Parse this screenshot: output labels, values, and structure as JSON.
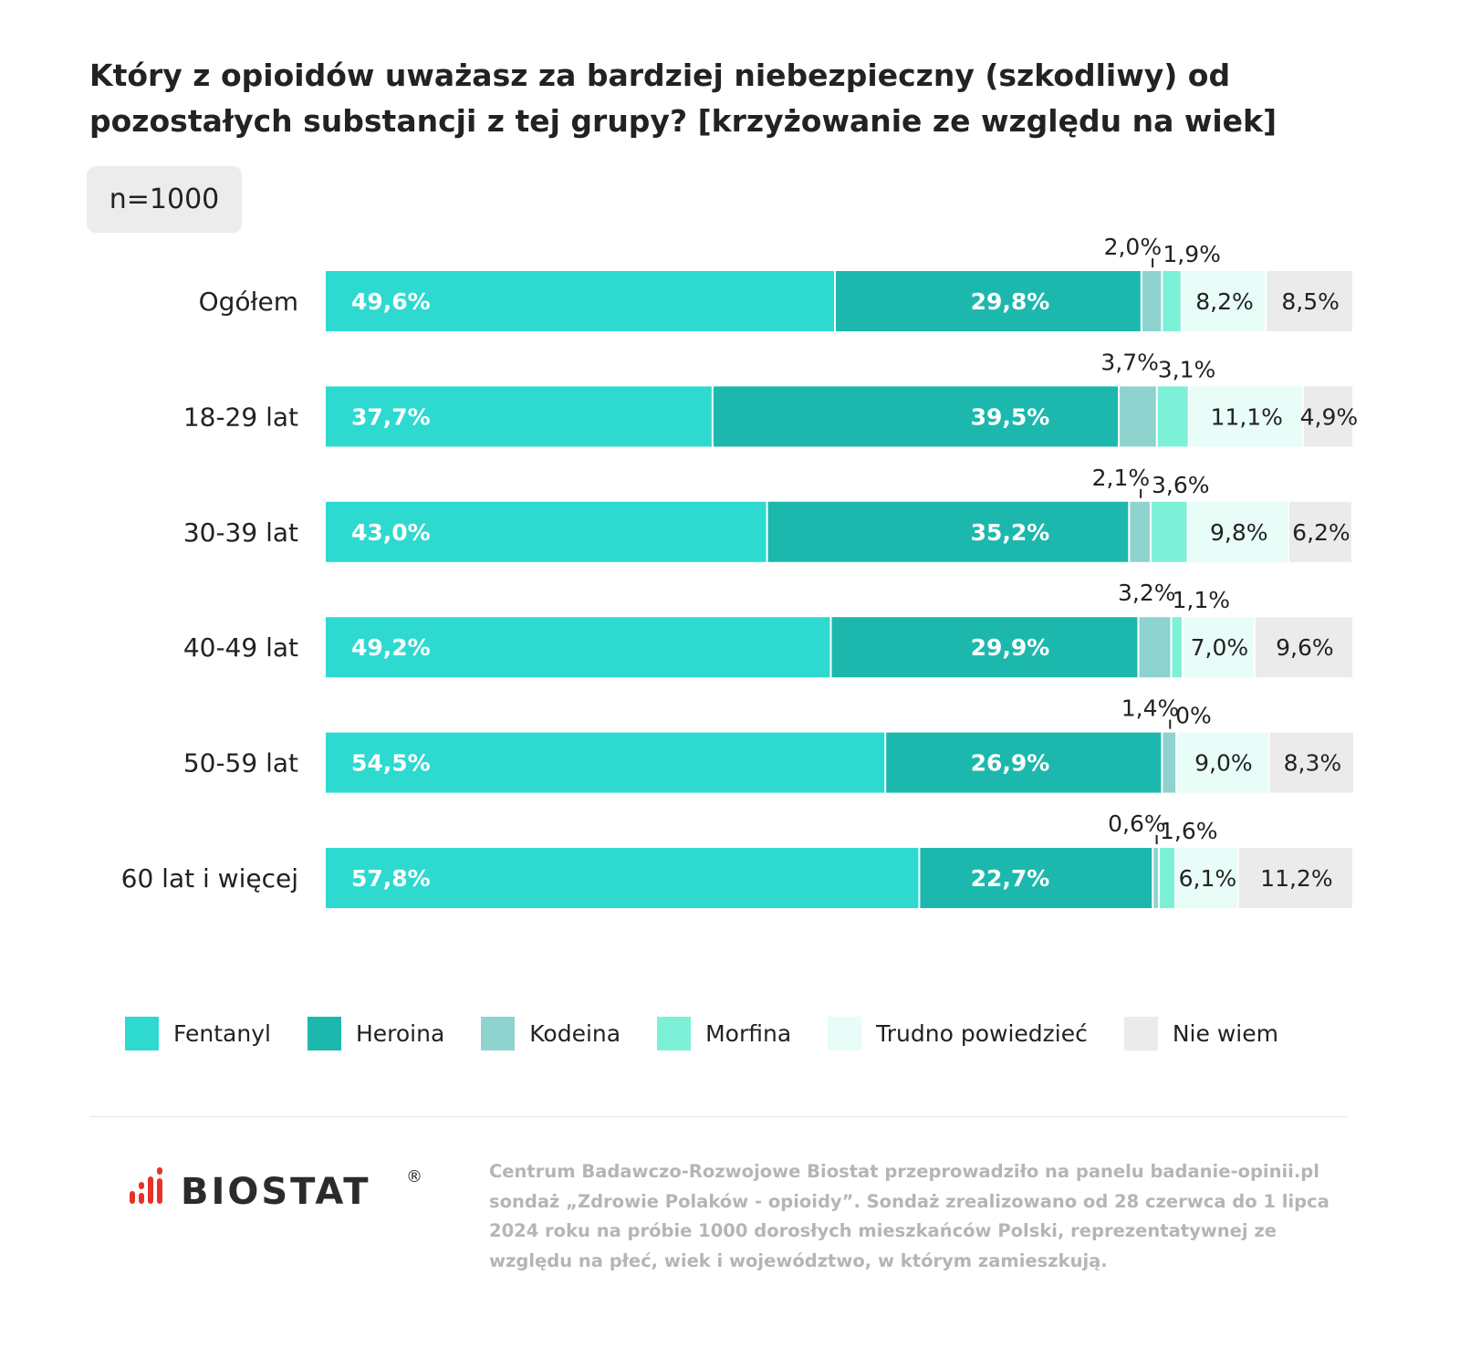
{
  "title": "Który z opioidów uważasz za bardziej niebezpieczny (szkodliwy) od pozostałych substancji z tej grupy? [krzyżowanie ze względu na wiek]",
  "sample": "n=1000",
  "colors": {
    "Fentanyl": "#2ed9d0",
    "Heroina": "#1db8ad",
    "Kodeina": "#8fd3cf",
    "Morfina": "#7df0d8",
    "Trudno powiedzieć": "#e8fcf8",
    "Nie wiem": "#ebebeb"
  },
  "chart_data": {
    "type": "bar",
    "orientation": "horizontal",
    "stacked": true,
    "title": "Który z opioidów uważasz za bardziej niebezpieczny (szkodliwy) od pozostałych substancji z tej grupy? [krzyżowanie ze względu na wiek]",
    "categories": [
      "Ogółem",
      "18-29 lat",
      "30-39 lat",
      "40-49 lat",
      "50-59 lat",
      "60 lat i więcej"
    ],
    "xlim": [
      0,
      100
    ],
    "unit": "%",
    "legend_position": "bottom",
    "grid": false,
    "series": [
      {
        "name": "Fentanyl",
        "values": [
          49.6,
          37.7,
          43.0,
          49.2,
          54.5,
          57.8
        ],
        "labels": [
          "49,6%",
          "37,7%",
          "43,0%",
          "49,2%",
          "54,5%",
          "57,8%"
        ]
      },
      {
        "name": "Heroina",
        "values": [
          29.8,
          39.5,
          35.2,
          29.9,
          26.9,
          22.7
        ],
        "labels": [
          "29,8%",
          "39,5%",
          "35,2%",
          "29,9%",
          "26,9%",
          "22,7%"
        ]
      },
      {
        "name": "Kodeina",
        "values": [
          2.0,
          3.7,
          2.1,
          3.2,
          1.4,
          0.6
        ],
        "labels": [
          "2,0%",
          "3,7%",
          "2,1%",
          "3,2%",
          "1,4%",
          "0,6%"
        ]
      },
      {
        "name": "Morfina",
        "values": [
          1.9,
          3.1,
          3.6,
          1.1,
          0,
          1.6
        ],
        "labels": [
          "1,9%",
          "3,1%",
          "3,6%",
          "1,1%",
          "0%",
          "1,6%"
        ]
      },
      {
        "name": "Trudno powiedzieć",
        "values": [
          8.2,
          11.1,
          9.8,
          7.0,
          9.0,
          6.1
        ],
        "labels": [
          "8,2%",
          "11,1%",
          "9,8%",
          "7,0%",
          "9,0%",
          "6,1%"
        ]
      },
      {
        "name": "Nie wiem",
        "values": [
          8.5,
          4.9,
          6.2,
          9.6,
          8.3,
          11.2
        ],
        "labels": [
          "8,5%",
          "4,9%",
          "6,2%",
          "9,6%",
          "8,3%",
          "11,2%"
        ]
      }
    ]
  },
  "legend": [
    "Fentanyl",
    "Heroina",
    "Kodeina",
    "Morfina",
    "Trudno powiedzieć",
    "Nie wiem"
  ],
  "logo": {
    "text": "BIOSTAT",
    "mark": "®",
    "color": "#e63329"
  },
  "footer": "Centrum Badawczo-Rozwojowe Biostat przeprowadziło na panelu badanie-opinii.pl sondaż „Zdrowie Polaków - opioidy”. Sondaż zrealizowano od 28 czerwca do 1 lipca 2024 roku na próbie 1000 dorosłych mieszkańców Polski, reprezentatywnej ze względu na płeć, wiek i województwo, w którym zamieszkują."
}
